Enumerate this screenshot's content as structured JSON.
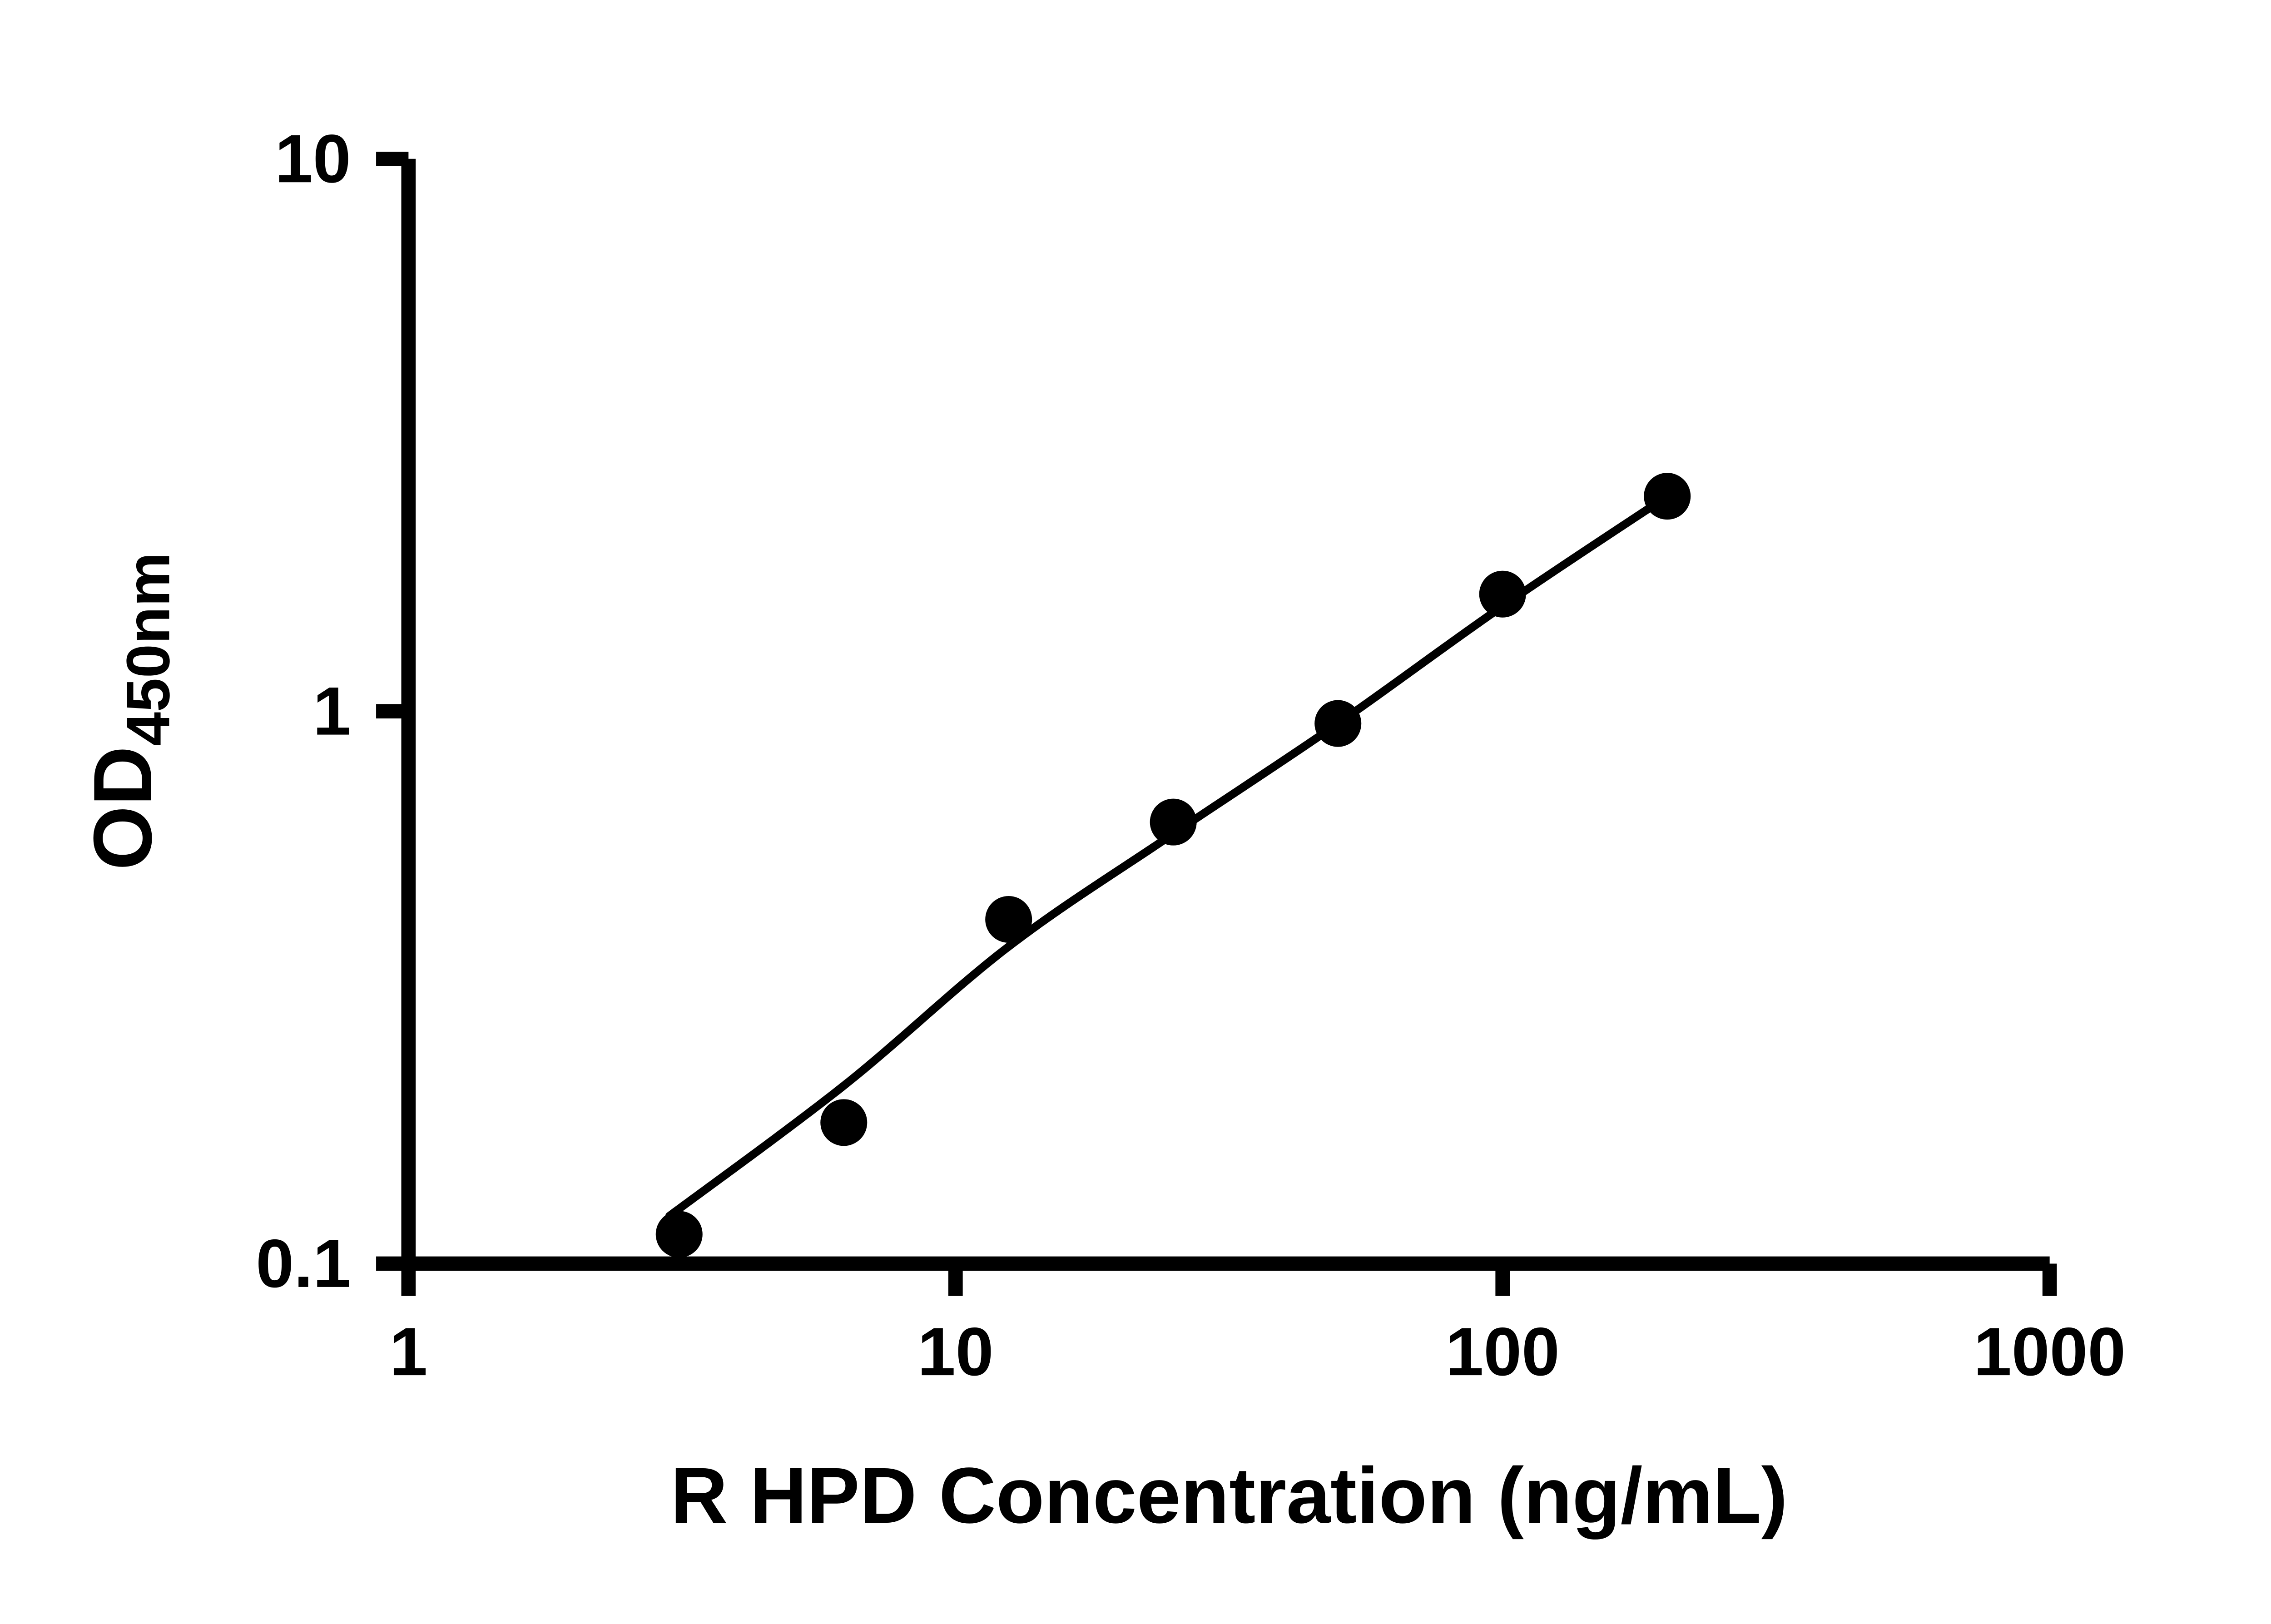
{
  "chart_data": {
    "type": "scatter",
    "title": "",
    "xlabel": "R HPD Concentration (ng/mL)",
    "ylabel": "OD",
    "ylabel_subscript": "450nm",
    "x_scale": "log",
    "y_scale": "log",
    "xlim": [
      1,
      1000
    ],
    "ylim": [
      0.1,
      10
    ],
    "x_ticks": [
      1,
      10,
      100,
      1000
    ],
    "x_tick_labels": [
      "1",
      "10",
      "100",
      "1000"
    ],
    "y_ticks": [
      0.1,
      1,
      10
    ],
    "y_tick_labels": [
      "0.1",
      "1",
      "10"
    ],
    "grid": "off",
    "legend": "none",
    "series": [
      {
        "name": "standard-points",
        "kind": "scatter",
        "marker": "filled-circle",
        "color": "#000000",
        "x": [
          3.125,
          6.25,
          12.5,
          25,
          50,
          100,
          200
        ],
        "y": [
          0.113,
          0.18,
          0.42,
          0.63,
          0.95,
          1.63,
          2.45
        ]
      },
      {
        "name": "fitted-curve",
        "kind": "line",
        "color": "#000000",
        "x": [
          3.0,
          6.25,
          12.5,
          25,
          50,
          100,
          200
        ],
        "y": [
          0.122,
          0.21,
          0.375,
          0.6,
          0.95,
          1.55,
          2.45
        ]
      }
    ],
    "colors": {
      "axis": "#000000",
      "points": "#000000",
      "line": "#000000",
      "background": "#ffffff"
    }
  }
}
